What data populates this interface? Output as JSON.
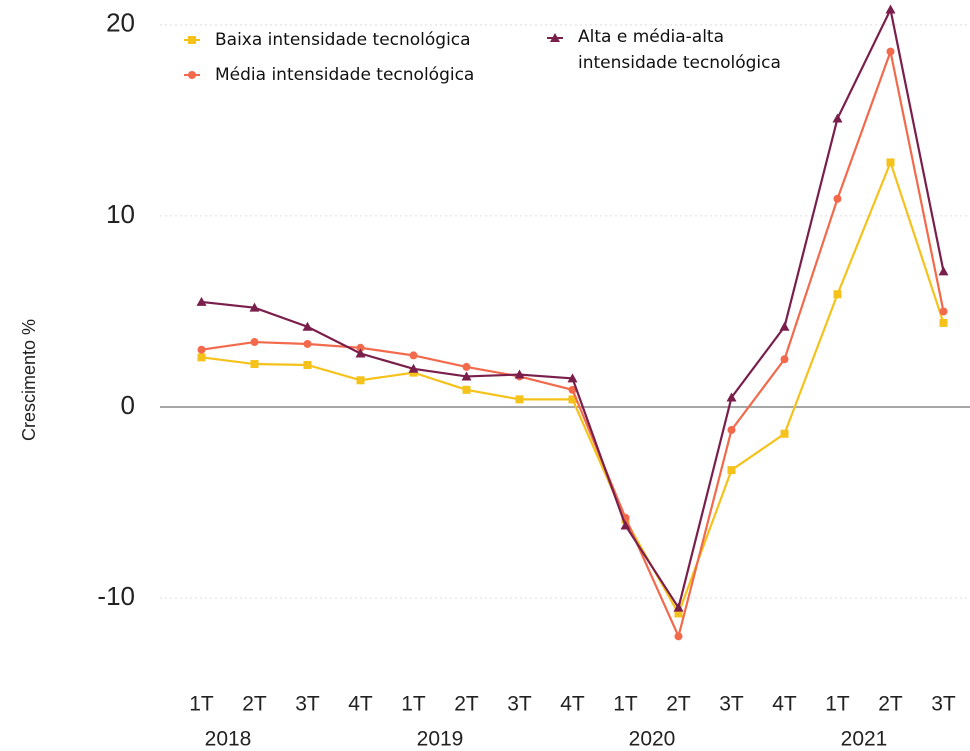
{
  "chart_data": {
    "type": "line",
    "y_label": "Crescimento %",
    "categories": [
      "1T",
      "2T",
      "3T",
      "4T",
      "1T",
      "2T",
      "3T",
      "4T",
      "1T",
      "2T",
      "3T",
      "4T",
      "1T",
      "2T",
      "3T"
    ],
    "years": [
      "2018",
      "2019",
      "2020",
      "2021"
    ],
    "series": [
      {
        "name": "Baixa intensidade tecnológica",
        "color": "#f5c21b",
        "marker": "square",
        "values": [
          2.6,
          2.25,
          2.2,
          1.4,
          1.8,
          0.9,
          0.4,
          0.4,
          -5.9,
          -10.8,
          -3.3,
          -1.4,
          5.9,
          12.8,
          4.4
        ]
      },
      {
        "name": "Média intensidade tecnológica",
        "color": "#f2694b",
        "marker": "circle",
        "values": [
          3.0,
          3.4,
          3.3,
          3.1,
          2.7,
          2.1,
          1.6,
          0.9,
          -5.8,
          -12.0,
          -1.2,
          2.5,
          10.9,
          18.6,
          5.0
        ]
      },
      {
        "name": "Alta e média-alta intensidade tecnológica",
        "color": "#7a1f4c",
        "marker": "triangle",
        "values": [
          5.5,
          5.2,
          4.2,
          2.8,
          2.0,
          1.6,
          1.7,
          1.5,
          -6.2,
          -10.5,
          0.5,
          4.2,
          15.1,
          20.8,
          7.1
        ]
      }
    ],
    "ylim": [
      -13.5,
      21.3
    ],
    "yticks": [
      -10,
      0,
      10,
      20
    ],
    "grid": true,
    "zero_line": 0,
    "legend": "top"
  }
}
